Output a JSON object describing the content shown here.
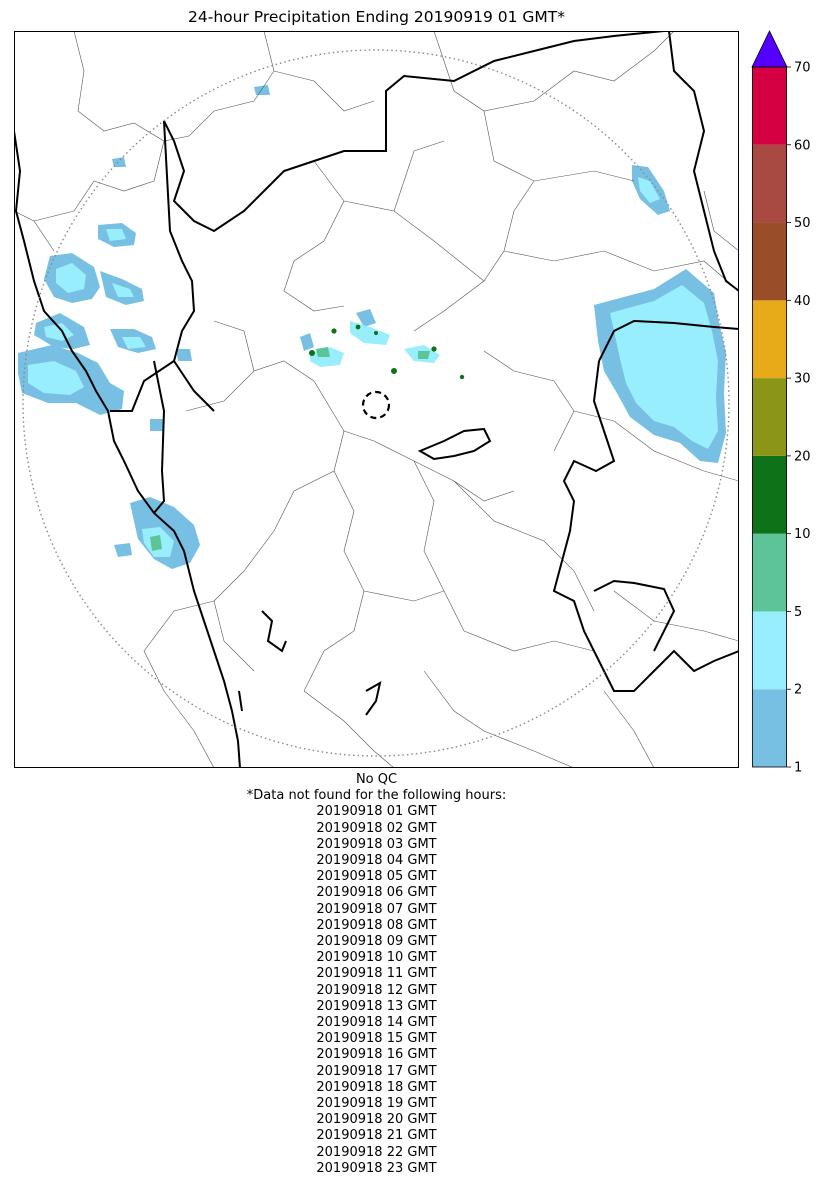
{
  "title": "24-hour Precipitation Ending 20190919 01 GMT*",
  "qc_note": "No QC",
  "missing_header": "*Data not found for the following hours:",
  "missing_hours": [
    "20190918 01 GMT",
    "20190918 02 GMT",
    "20190918 03 GMT",
    "20190918 04 GMT",
    "20190918 05 GMT",
    "20190918 06 GMT",
    "20190918 07 GMT",
    "20190918 08 GMT",
    "20190918 09 GMT",
    "20190918 10 GMT",
    "20190918 11 GMT",
    "20190918 12 GMT",
    "20190918 13 GMT",
    "20190918 14 GMT",
    "20190918 15 GMT",
    "20190918 16 GMT",
    "20190918 17 GMT",
    "20190918 18 GMT",
    "20190918 19 GMT",
    "20190918 20 GMT",
    "20190918 21 GMT",
    "20190918 22 GMT",
    "20190918 23 GMT"
  ],
  "colorbar": {
    "ticks": [
      "1",
      "2",
      "5",
      "10",
      "20",
      "30",
      "40",
      "50",
      "60",
      "70"
    ],
    "bins": [
      {
        "from": "1",
        "to": "2",
        "color": "#77c0e4"
      },
      {
        "from": "2",
        "to": "5",
        "color": "#98eefc"
      },
      {
        "from": "5",
        "to": "10",
        "color": "#5dc498"
      },
      {
        "from": "10",
        "to": "20",
        "color": "#0e7219"
      },
      {
        "from": "20",
        "to": "30",
        "color": "#8b9518"
      },
      {
        "from": "30",
        "to": "40",
        "color": "#e7aa18"
      },
      {
        "from": "40",
        "to": "50",
        "color": "#9a4e27"
      },
      {
        "from": "50",
        "to": "60",
        "color": "#a84a42"
      },
      {
        "from": "60",
        "to": "70",
        "color": "#d50042"
      }
    ],
    "over_color": "#5500ff"
  }
}
